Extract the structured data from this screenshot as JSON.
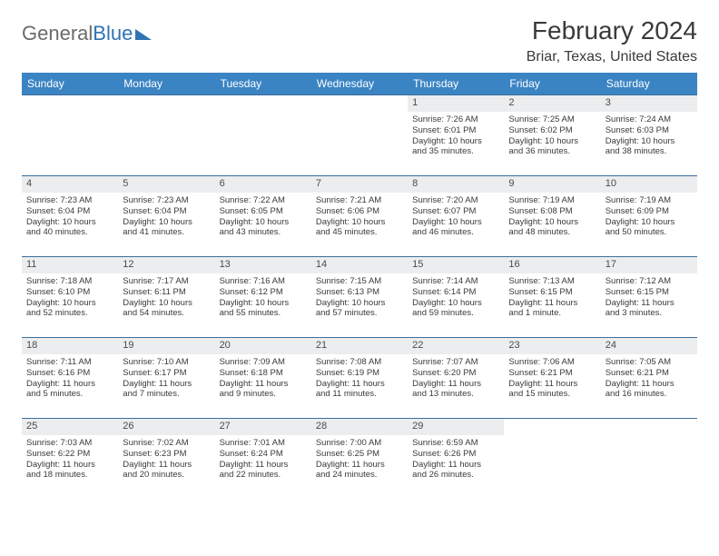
{
  "brand": {
    "part1": "General",
    "part2": "Blue"
  },
  "title": "February 2024",
  "location": "Briar, Texas, United States",
  "colors": {
    "header_bg": "#3b84c4",
    "header_text": "#ffffff",
    "week_border": "#3b6f9e",
    "daynum_bg": "#ecedee",
    "text": "#3a3a3a",
    "brand_grey": "#6a6a6a",
    "brand_blue": "#2f74b5"
  },
  "day_headers": [
    "Sunday",
    "Monday",
    "Tuesday",
    "Wednesday",
    "Thursday",
    "Friday",
    "Saturday"
  ],
  "leading_blanks": 4,
  "days": [
    {
      "n": "1",
      "sunrise": "Sunrise: 7:26 AM",
      "sunset": "Sunset: 6:01 PM",
      "day1": "Daylight: 10 hours",
      "day2": "and 35 minutes."
    },
    {
      "n": "2",
      "sunrise": "Sunrise: 7:25 AM",
      "sunset": "Sunset: 6:02 PM",
      "day1": "Daylight: 10 hours",
      "day2": "and 36 minutes."
    },
    {
      "n": "3",
      "sunrise": "Sunrise: 7:24 AM",
      "sunset": "Sunset: 6:03 PM",
      "day1": "Daylight: 10 hours",
      "day2": "and 38 minutes."
    },
    {
      "n": "4",
      "sunrise": "Sunrise: 7:23 AM",
      "sunset": "Sunset: 6:04 PM",
      "day1": "Daylight: 10 hours",
      "day2": "and 40 minutes."
    },
    {
      "n": "5",
      "sunrise": "Sunrise: 7:23 AM",
      "sunset": "Sunset: 6:04 PM",
      "day1": "Daylight: 10 hours",
      "day2": "and 41 minutes."
    },
    {
      "n": "6",
      "sunrise": "Sunrise: 7:22 AM",
      "sunset": "Sunset: 6:05 PM",
      "day1": "Daylight: 10 hours",
      "day2": "and 43 minutes."
    },
    {
      "n": "7",
      "sunrise": "Sunrise: 7:21 AM",
      "sunset": "Sunset: 6:06 PM",
      "day1": "Daylight: 10 hours",
      "day2": "and 45 minutes."
    },
    {
      "n": "8",
      "sunrise": "Sunrise: 7:20 AM",
      "sunset": "Sunset: 6:07 PM",
      "day1": "Daylight: 10 hours",
      "day2": "and 46 minutes."
    },
    {
      "n": "9",
      "sunrise": "Sunrise: 7:19 AM",
      "sunset": "Sunset: 6:08 PM",
      "day1": "Daylight: 10 hours",
      "day2": "and 48 minutes."
    },
    {
      "n": "10",
      "sunrise": "Sunrise: 7:19 AM",
      "sunset": "Sunset: 6:09 PM",
      "day1": "Daylight: 10 hours",
      "day2": "and 50 minutes."
    },
    {
      "n": "11",
      "sunrise": "Sunrise: 7:18 AM",
      "sunset": "Sunset: 6:10 PM",
      "day1": "Daylight: 10 hours",
      "day2": "and 52 minutes."
    },
    {
      "n": "12",
      "sunrise": "Sunrise: 7:17 AM",
      "sunset": "Sunset: 6:11 PM",
      "day1": "Daylight: 10 hours",
      "day2": "and 54 minutes."
    },
    {
      "n": "13",
      "sunrise": "Sunrise: 7:16 AM",
      "sunset": "Sunset: 6:12 PM",
      "day1": "Daylight: 10 hours",
      "day2": "and 55 minutes."
    },
    {
      "n": "14",
      "sunrise": "Sunrise: 7:15 AM",
      "sunset": "Sunset: 6:13 PM",
      "day1": "Daylight: 10 hours",
      "day2": "and 57 minutes."
    },
    {
      "n": "15",
      "sunrise": "Sunrise: 7:14 AM",
      "sunset": "Sunset: 6:14 PM",
      "day1": "Daylight: 10 hours",
      "day2": "and 59 minutes."
    },
    {
      "n": "16",
      "sunrise": "Sunrise: 7:13 AM",
      "sunset": "Sunset: 6:15 PM",
      "day1": "Daylight: 11 hours",
      "day2": "and 1 minute."
    },
    {
      "n": "17",
      "sunrise": "Sunrise: 7:12 AM",
      "sunset": "Sunset: 6:15 PM",
      "day1": "Daylight: 11 hours",
      "day2": "and 3 minutes."
    },
    {
      "n": "18",
      "sunrise": "Sunrise: 7:11 AM",
      "sunset": "Sunset: 6:16 PM",
      "day1": "Daylight: 11 hours",
      "day2": "and 5 minutes."
    },
    {
      "n": "19",
      "sunrise": "Sunrise: 7:10 AM",
      "sunset": "Sunset: 6:17 PM",
      "day1": "Daylight: 11 hours",
      "day2": "and 7 minutes."
    },
    {
      "n": "20",
      "sunrise": "Sunrise: 7:09 AM",
      "sunset": "Sunset: 6:18 PM",
      "day1": "Daylight: 11 hours",
      "day2": "and 9 minutes."
    },
    {
      "n": "21",
      "sunrise": "Sunrise: 7:08 AM",
      "sunset": "Sunset: 6:19 PM",
      "day1": "Daylight: 11 hours",
      "day2": "and 11 minutes."
    },
    {
      "n": "22",
      "sunrise": "Sunrise: 7:07 AM",
      "sunset": "Sunset: 6:20 PM",
      "day1": "Daylight: 11 hours",
      "day2": "and 13 minutes."
    },
    {
      "n": "23",
      "sunrise": "Sunrise: 7:06 AM",
      "sunset": "Sunset: 6:21 PM",
      "day1": "Daylight: 11 hours",
      "day2": "and 15 minutes."
    },
    {
      "n": "24",
      "sunrise": "Sunrise: 7:05 AM",
      "sunset": "Sunset: 6:21 PM",
      "day1": "Daylight: 11 hours",
      "day2": "and 16 minutes."
    },
    {
      "n": "25",
      "sunrise": "Sunrise: 7:03 AM",
      "sunset": "Sunset: 6:22 PM",
      "day1": "Daylight: 11 hours",
      "day2": "and 18 minutes."
    },
    {
      "n": "26",
      "sunrise": "Sunrise: 7:02 AM",
      "sunset": "Sunset: 6:23 PM",
      "day1": "Daylight: 11 hours",
      "day2": "and 20 minutes."
    },
    {
      "n": "27",
      "sunrise": "Sunrise: 7:01 AM",
      "sunset": "Sunset: 6:24 PM",
      "day1": "Daylight: 11 hours",
      "day2": "and 22 minutes."
    },
    {
      "n": "28",
      "sunrise": "Sunrise: 7:00 AM",
      "sunset": "Sunset: 6:25 PM",
      "day1": "Daylight: 11 hours",
      "day2": "and 24 minutes."
    },
    {
      "n": "29",
      "sunrise": "Sunrise: 6:59 AM",
      "sunset": "Sunset: 6:26 PM",
      "day1": "Daylight: 11 hours",
      "day2": "and 26 minutes."
    }
  ]
}
